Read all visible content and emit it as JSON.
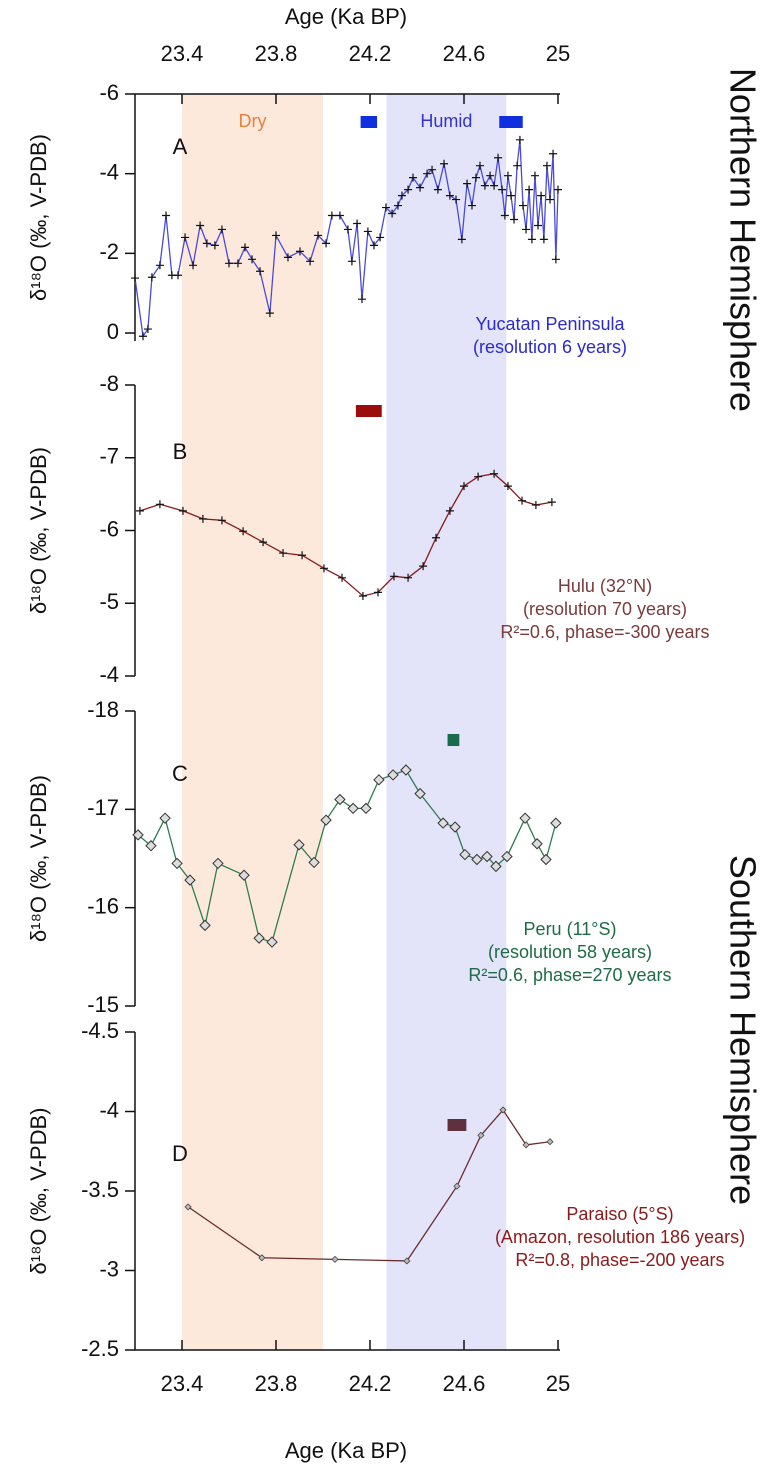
{
  "x_axis": {
    "title": "Age (Ka BP)",
    "xlim": [
      23.2,
      25
    ],
    "xticks": [
      23.4,
      23.8,
      24.2,
      24.6,
      25
    ]
  },
  "bands": [
    {
      "label": "Dry",
      "x": [
        23.4,
        24.0
      ],
      "color": "#fde9dc",
      "label_color": "#e8803a"
    },
    {
      "label": "Humid",
      "x": [
        24.27,
        24.78
      ],
      "color": "#e3e3fa",
      "label_color": "#3333cc"
    }
  ],
  "side_labels": [
    "Northern Hemisphere",
    "Southern Hemisphere"
  ],
  "chart_data": [
    {
      "type": "line",
      "label": "A",
      "ylabel": "δ¹⁸O (‰, V-PDB)",
      "color": "#4a4adb",
      "marker": "plus",
      "ylim": [
        0.2,
        -6
      ],
      "yticks": [
        -6,
        -4,
        -2,
        0
      ],
      "notes": [
        "Yucatan Peninsula",
        "(resolution 6 years)"
      ],
      "note_color": "#2a2ad0",
      "flags": [
        [
          24.16,
          24.23
        ],
        [
          24.75,
          24.85
        ]
      ],
      "flag_color": "#1030e0",
      "x": [
        23.2,
        23.234,
        23.255,
        23.272,
        23.306,
        23.332,
        23.357,
        23.383,
        23.413,
        23.447,
        23.477,
        23.506,
        23.54,
        23.57,
        23.6,
        23.638,
        23.668,
        23.698,
        23.732,
        23.774,
        23.8,
        23.851,
        23.902,
        23.945,
        23.979,
        24.013,
        24.038,
        24.072,
        24.106,
        24.123,
        24.145,
        24.166,
        24.191,
        24.217,
        24.243,
        24.268,
        24.294,
        24.319,
        24.336,
        24.362,
        24.383,
        24.413,
        24.443,
        24.464,
        24.489,
        24.515,
        24.54,
        24.566,
        24.591,
        24.613,
        24.634,
        24.651,
        24.668,
        24.689,
        24.711,
        24.728,
        24.745,
        24.762,
        24.774,
        24.787,
        24.8,
        24.813,
        24.826,
        24.838,
        24.851,
        24.864,
        24.877,
        24.889,
        24.902,
        24.915,
        24.928,
        24.94,
        24.953,
        24.966,
        24.979,
        24.991,
        25.0
      ],
      "values": [
        -1.38,
        0.08,
        -0.1,
        -1.4,
        -1.7,
        -2.95,
        -1.45,
        -1.45,
        -2.4,
        -1.7,
        -2.7,
        -2.25,
        -2.2,
        -2.6,
        -1.75,
        -1.75,
        -2.15,
        -1.85,
        -1.55,
        -0.5,
        -2.45,
        -1.9,
        -2.05,
        -1.8,
        -2.45,
        -2.25,
        -2.95,
        -2.95,
        -2.6,
        -1.8,
        -2.75,
        -0.85,
        -2.55,
        -2.2,
        -2.4,
        -3.15,
        -3.0,
        -3.2,
        -3.45,
        -3.6,
        -3.9,
        -3.65,
        -4.0,
        -4.1,
        -3.6,
        -4.25,
        -3.45,
        -3.35,
        -2.35,
        -3.75,
        -3.2,
        -3.9,
        -4.2,
        -3.7,
        -3.95,
        -3.7,
        -4.4,
        -3.6,
        -2.95,
        -3.95,
        -3.45,
        -2.85,
        -4.2,
        -4.85,
        -3.2,
        -2.6,
        -3.6,
        -2.35,
        -3.95,
        -2.7,
        -3.45,
        -2.35,
        -4.2,
        -3.35,
        -4.5,
        -1.85,
        -3.6
      ]
    },
    {
      "type": "line",
      "label": "B",
      "ylabel": "δ¹⁸O (‰, V-PDB)",
      "color": "#8b1a1a",
      "marker": "plus",
      "ylim": [
        -4,
        -8
      ],
      "yticks": [
        -8,
        -7,
        -6,
        -5,
        -4
      ],
      "notes": [
        "Hulu (32°N)",
        "(resolution 70 years)",
        "R²=0.6, phase=-300 years"
      ],
      "note_color": "#7a3b3b",
      "flags": [
        [
          24.14,
          24.25
        ]
      ],
      "flag_color": "#9b0d0d",
      "x": [
        23.221,
        23.306,
        23.404,
        23.489,
        23.57,
        23.66,
        23.745,
        23.83,
        23.911,
        24.004,
        24.081,
        24.17,
        24.234,
        24.302,
        24.362,
        24.426,
        24.481,
        24.54,
        24.6,
        24.66,
        24.728,
        24.787,
        24.847,
        24.906,
        24.974
      ],
      "values": [
        -6.27,
        -6.36,
        -6.27,
        -6.16,
        -6.14,
        -5.99,
        -5.84,
        -5.69,
        -5.66,
        -5.48,
        -5.35,
        -5.1,
        -5.15,
        -5.37,
        -5.35,
        -5.51,
        -5.9,
        -6.27,
        -6.61,
        -6.74,
        -6.78,
        -6.61,
        -6.41,
        -6.35,
        -6.39
      ]
    },
    {
      "type": "line",
      "label": "C",
      "ylabel": "δ¹⁸O (‰, V-PDB)",
      "color": "#2e7d4f",
      "marker": "diamond",
      "ylim": [
        -15,
        -18
      ],
      "yticks": [
        -18,
        -17,
        -16,
        -15
      ],
      "notes": [
        "Peru (11°S)",
        "(resolution 58 years)",
        "R²=0.6, phase=270 years"
      ],
      "note_color": "#1e6b46",
      "flags": [
        [
          24.53,
          24.58
        ]
      ],
      "flag_color": "#1a6b4a",
      "x": [
        23.213,
        23.268,
        23.328,
        23.379,
        23.434,
        23.498,
        23.553,
        23.664,
        23.728,
        23.783,
        23.898,
        23.962,
        24.013,
        24.072,
        24.128,
        24.183,
        24.238,
        24.298,
        24.353,
        24.413,
        24.511,
        24.562,
        24.604,
        24.655,
        24.698,
        24.736,
        24.783,
        24.86,
        24.911,
        24.949,
        24.991
      ],
      "values": [
        -16.74,
        -16.63,
        -16.91,
        -16.45,
        -16.28,
        -15.82,
        -16.45,
        -16.33,
        -15.69,
        -15.65,
        -16.64,
        -16.46,
        -16.89,
        -17.1,
        -17.01,
        -17.01,
        -17.3,
        -17.35,
        -17.4,
        -17.16,
        -16.86,
        -16.82,
        -16.54,
        -16.49,
        -16.52,
        -16.42,
        -16.52,
        -16.91,
        -16.65,
        -16.49,
        -16.86
      ]
    },
    {
      "type": "line",
      "label": "D",
      "ylabel": "δ¹⁸O (‰, V-PDB)",
      "color": "#6b2a2a",
      "marker": "small-diamond",
      "ylim": [
        -2.5,
        -4.5
      ],
      "yticks": [
        -4.5,
        -4,
        -3.5,
        -3,
        -2.5
      ],
      "notes": [
        "Paraiso (5°S)",
        "(Amazon, resolution 186 years)",
        "R²=0.8, phase=-200 years"
      ],
      "note_color": "#8b1a1a",
      "flags": [
        [
          24.53,
          24.61
        ]
      ],
      "flag_color": "#5e3040",
      "x": [
        23.426,
        23.74,
        24.051,
        24.357,
        24.57,
        24.672,
        24.766,
        24.864,
        24.966
      ],
      "values": [
        -3.4,
        -3.08,
        -3.07,
        -3.06,
        -3.53,
        -3.85,
        -4.01,
        -3.79,
        -3.81
      ]
    }
  ]
}
